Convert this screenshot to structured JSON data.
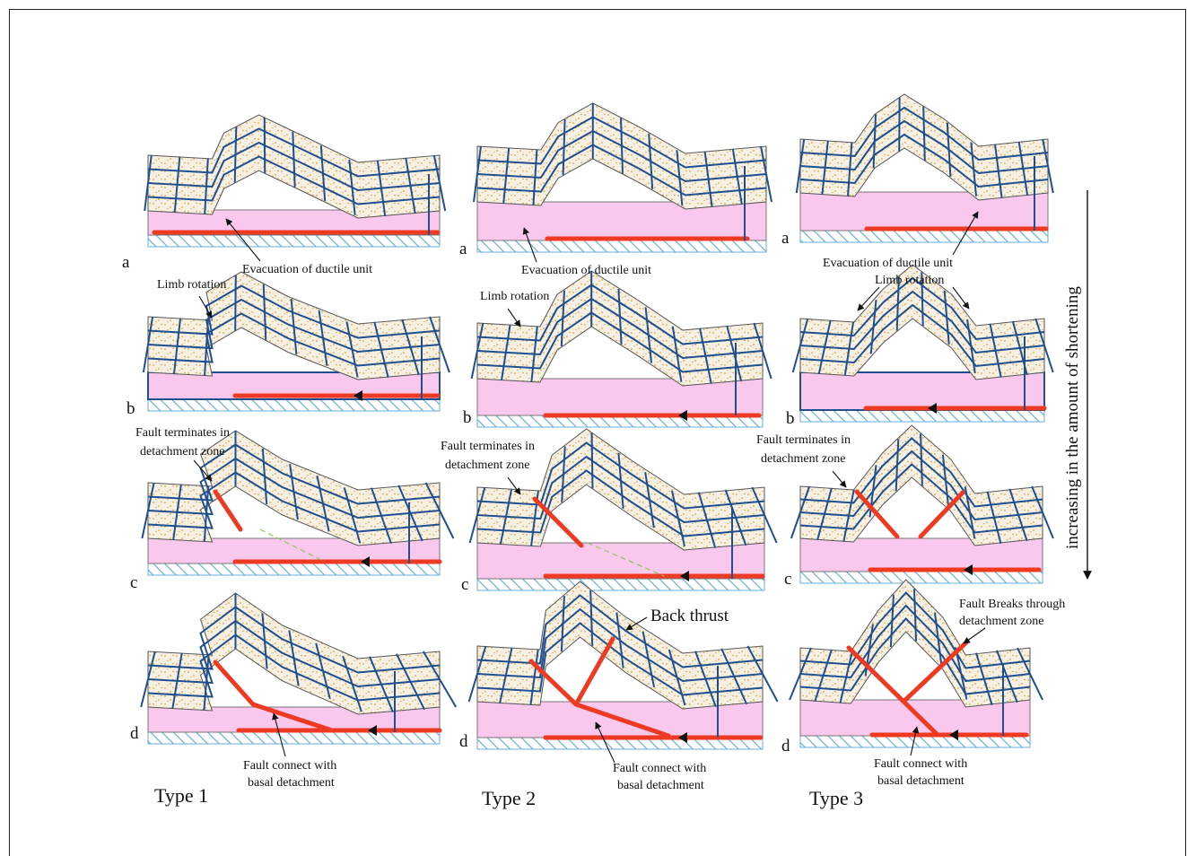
{
  "colors": {
    "sand_layer": "#f6f0e2",
    "sand_dots": "#d9a441",
    "ductile_unit": "#f9c8ec",
    "basement_hatch": "#6aaed8",
    "grid_lines": "#1f4f8f",
    "fault": "#ee3a22",
    "trace": "#8ec85a"
  },
  "stage_letters": [
    "a",
    "b",
    "c",
    "d"
  ],
  "types": [
    "Type 1",
    "Type 2",
    "Type 3"
  ],
  "side_arrow_label": "increasing in the amount of shortening",
  "labels": {
    "t1_evac": "Evacuation of ductile unit",
    "t1_limb": "Limb rotation",
    "t1_fault_term_1": "Fault terminates in",
    "t1_fault_term_2": "detachment zone",
    "t1_connect_1": "Fault connect with",
    "t1_connect_2": "basal detachment",
    "t2_evac": "Evacuation of ductile unit",
    "t2_limb": "Limb rotation",
    "t2_fault_term_1": "Fault terminates in",
    "t2_fault_term_2": "detachment zone",
    "t2_back_thrust": "Back thrust",
    "t2_connect_1": "Fault connect with",
    "t2_connect_2": "basal detachment",
    "t3_evac": "Evacuation of ductile unit",
    "t3_limb": "Limb rotation",
    "t3_fault_term_1": "Fault terminates in",
    "t3_fault_term_2": "detachment zone",
    "t3_breaks_1": "Fault Breaks through",
    "t3_breaks_2": "detachment zone",
    "t3_connect_1": "Fault connect with",
    "t3_connect_2": "basal detachment"
  }
}
